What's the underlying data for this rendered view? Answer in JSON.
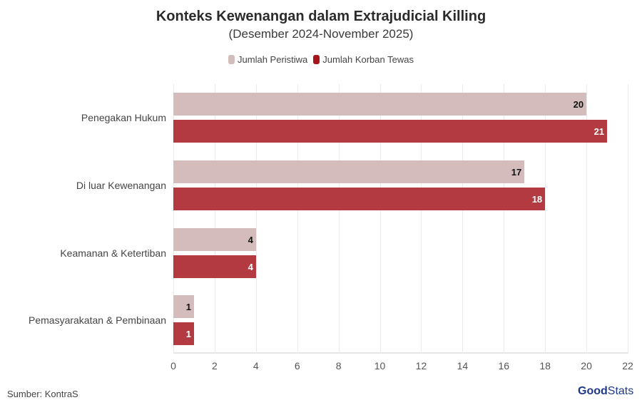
{
  "header": {
    "title": "Konteks Kewenangan dalam Extrajudicial Killing",
    "subtitle": "(Desember 2024-November 2025)"
  },
  "legend": [
    {
      "label": "Jumlah Peristiwa",
      "color": "#d4bcbc"
    },
    {
      "label": "Jumlah Korban Tewas",
      "color": "#b23a40"
    }
  ],
  "footer": {
    "source": "Sumber: KontraS",
    "logo_bold": "Good",
    "logo_light": "Stats"
  },
  "chart_data": {
    "type": "bar",
    "orientation": "horizontal",
    "title": "Konteks Kewenangan dalam Extrajudicial Killing",
    "subtitle": "(Desember 2024-November 2025)",
    "categories": [
      "Penegakan Hukum",
      "Di luar Kewenangan",
      "Keamanan & Ketertiban",
      "Pemasyarakatan & Pembinaan"
    ],
    "series": [
      {
        "name": "Jumlah Peristiwa",
        "color": "#d4bcbc",
        "values": [
          20,
          17,
          4,
          1
        ]
      },
      {
        "name": "Jumlah Korban Tewas",
        "color": "#b23a40",
        "values": [
          21,
          18,
          4,
          1
        ]
      }
    ],
    "xlabel": "",
    "ylabel": "",
    "xlim": [
      0,
      22
    ],
    "xticks": [
      "0",
      "2",
      "4",
      "6",
      "8",
      "10",
      "12",
      "14",
      "16",
      "18",
      "20",
      "22"
    ],
    "grid": true,
    "legend_position": "top",
    "data_labels": true,
    "source": "Sumber: KontraS"
  }
}
